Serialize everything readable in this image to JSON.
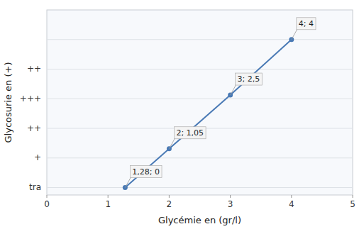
{
  "chart_data": {
    "type": "line",
    "x": [
      1.28,
      2,
      3,
      4
    ],
    "values": [
      0,
      1.05,
      2.5,
      4
    ],
    "annotations": [
      "1,28; 0",
      "2; 1,05",
      "3; 2,5",
      "4; 4"
    ],
    "xlabel": "Glycémie en (gr/l)",
    "ylabel": "Glycosurie en (+)",
    "xlim": [
      0,
      5
    ],
    "ylim": [
      -0.2,
      4.8
    ],
    "xticks": [
      0,
      1,
      2,
      3,
      4,
      5
    ],
    "yticks": [
      {
        "value": 0,
        "label": "tra"
      },
      {
        "value": 0.8,
        "label": "+"
      },
      {
        "value": 1.6,
        "label": "++"
      },
      {
        "value": 2.4,
        "label": "+++"
      },
      {
        "value": 3.2,
        "label": "++"
      },
      {
        "value": 4.0,
        "label": null
      }
    ],
    "color": "#4a7ab5",
    "marker": "circle",
    "grid": true
  }
}
